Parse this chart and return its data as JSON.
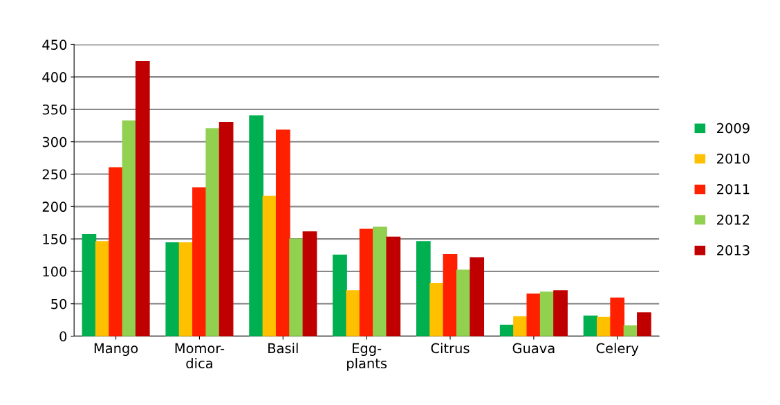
{
  "chart_data": {
    "type": "bar",
    "categories": [
      "Mango",
      "Momor-\ndica",
      "Basil",
      "Egg-\nplants",
      "Citrus",
      "Guava",
      "Celery"
    ],
    "series": [
      {
        "name": "2009",
        "color": "#00b050",
        "values": [
          157,
          144,
          340,
          125,
          146,
          17,
          31
        ]
      },
      {
        "name": "2010",
        "color": "#ffc000",
        "values": [
          146,
          144,
          216,
          70,
          81,
          30,
          29
        ]
      },
      {
        "name": "2011",
        "color": "#ff2000",
        "values": [
          260,
          229,
          318,
          165,
          126,
          65,
          59
        ]
      },
      {
        "name": "2012",
        "color": "#92d050",
        "values": [
          332,
          320,
          150,
          168,
          102,
          68,
          16
        ]
      },
      {
        "name": "2013",
        "color": "#c00000",
        "values": [
          424,
          330,
          161,
          153,
          121,
          70,
          36
        ]
      }
    ],
    "ylim": [
      0,
      450
    ],
    "yticks": [
      0,
      50,
      100,
      150,
      200,
      250,
      300,
      350,
      400,
      450
    ],
    "grid": "y",
    "legend": "right"
  }
}
